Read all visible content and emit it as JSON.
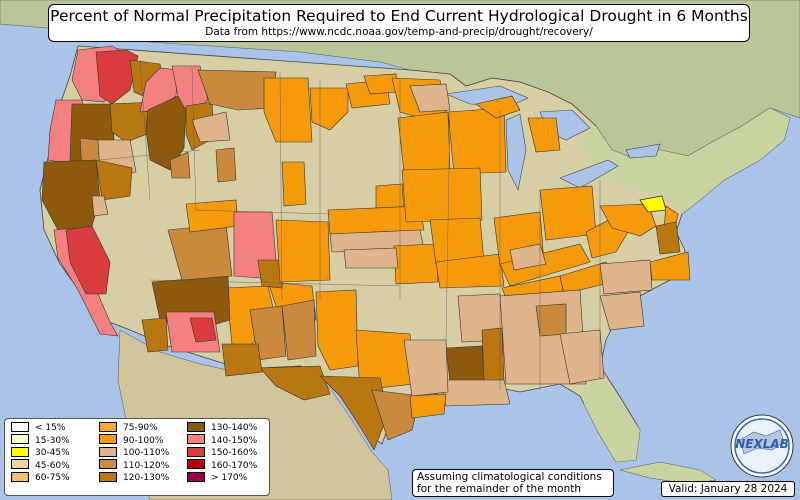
{
  "title": "Percent of Normal Precipitation Required to End Current Hydrological Drought in 6 Months",
  "subtitle": "Data from https://www.ncdc.noaa.gov/temp-and-precip/drought/recovery/",
  "note_line1": "Assuming climatological conditions",
  "note_line2": "for the remainder of the month",
  "valid": "Valid: January 28 2024",
  "logo_text": "NEXLAB",
  "legend": {
    "columns": [
      [
        {
          "label": "< 15%",
          "color": "#ffffff"
        },
        {
          "label": "15-30%",
          "color": "#ffffc8"
        },
        {
          "label": "30-45%",
          "color": "#ffff00"
        },
        {
          "label": "45-60%",
          "color": "#f6d29c"
        },
        {
          "label": "60-75%",
          "color": "#f4bf6e"
        }
      ],
      [
        {
          "label": "75-90%",
          "color": "#f7a934"
        },
        {
          "label": "90-100%",
          "color": "#f59a0a"
        },
        {
          "label": "100-110%",
          "color": "#deb48a"
        },
        {
          "label": "110-120%",
          "color": "#c98a3d"
        },
        {
          "label": "120-130%",
          "color": "#b9780f"
        }
      ],
      [
        {
          "label": "130-140%",
          "color": "#8d5a0d"
        },
        {
          "label": "140-150%",
          "color": "#f48080"
        },
        {
          "label": "150-160%",
          "color": "#d83c3c"
        },
        {
          "label": "160-170%",
          "color": "#b40000"
        },
        {
          "label": "> 170%",
          "color": "#9a0040"
        }
      ]
    ]
  },
  "colors": {
    "ocean": "#a9c4e8",
    "land_neutral": "#d6cfa4",
    "land_green": "#c8d4a0",
    "land_canada": "#b8c69a",
    "land_mexico": "#cfc49a",
    "c75_90": "#f7a934",
    "c90_100": "#f59a0a",
    "c100_110": "#deb48a",
    "c110_120": "#c98a3d",
    "c120_130": "#b9780f",
    "c130_140": "#8d5a0d",
    "c140_150": "#f48080",
    "c150_160": "#d83c3c",
    "c30_45": "#ffff00"
  }
}
